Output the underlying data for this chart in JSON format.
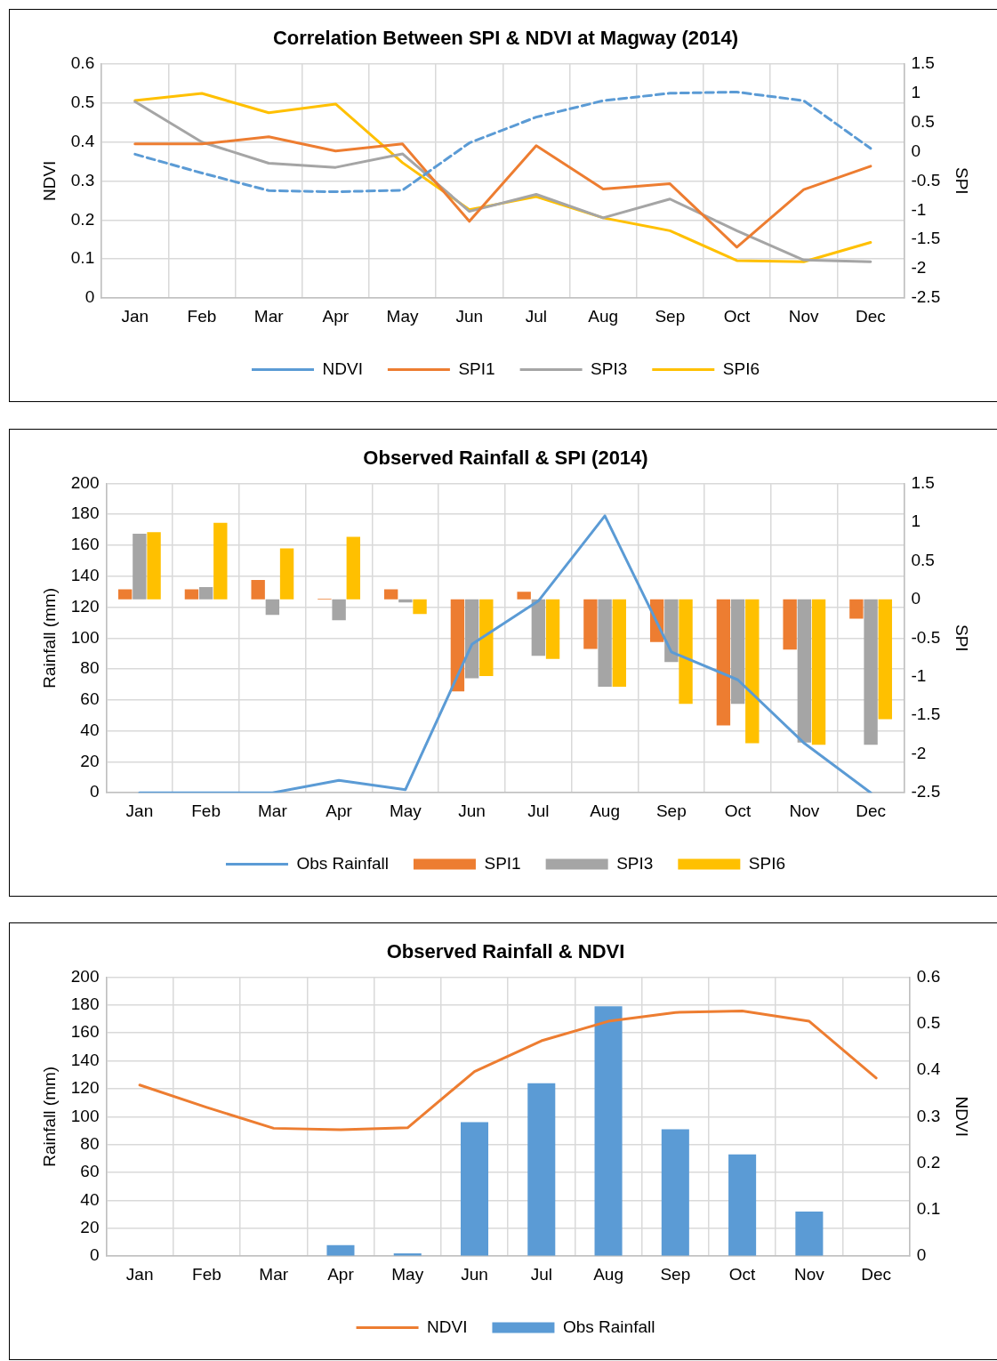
{
  "chart_data": [
    {
      "type": "line",
      "title": "Correlation Between SPI & NDVI at Magway (2014)",
      "ylabel": "NDVI",
      "y2label": "SPI",
      "categories": [
        "Jan",
        "Feb",
        "Mar",
        "Apr",
        "May",
        "Jun",
        "Jul",
        "Aug",
        "Sep",
        "Oct",
        "Nov",
        "Dec"
      ],
      "series": [
        {
          "name": "NDVI",
          "color": "#5b9bd5",
          "line_style": "dashed",
          "values": [
            0.368,
            0.32,
            0.275,
            0.272,
            0.276,
            0.397,
            0.463,
            0.505,
            0.524,
            0.527,
            0.505,
            0.383
          ]
        },
        {
          "name": "SPI1",
          "color": "#ed7d31",
          "axis": "y2",
          "values": [
            0.13,
            0.13,
            0.25,
            0.01,
            0.13,
            -1.19,
            0.1,
            -0.64,
            -0.55,
            -1.63,
            -0.65,
            -0.25
          ]
        },
        {
          "name": "SPI3",
          "color": "#a5a5a5",
          "axis": "y2",
          "values": [
            0.85,
            0.16,
            -0.2,
            -0.27,
            -0.04,
            -1.02,
            -0.73,
            -1.13,
            -0.81,
            -1.35,
            -1.85,
            -1.88
          ]
        },
        {
          "name": "SPI6",
          "color": "#ffc000",
          "axis": "y2",
          "values": [
            0.87,
            0.99,
            0.66,
            0.81,
            -0.19,
            -0.99,
            -0.77,
            -1.13,
            -1.35,
            -1.86,
            -1.88,
            -1.55
          ]
        }
      ],
      "ylim": [
        0,
        0.6
      ],
      "yticks": [
        0,
        0.1,
        0.2,
        0.3,
        0.4,
        0.5,
        0.6
      ],
      "y2lim": [
        -2.5,
        1.5
      ],
      "y2ticks": [
        -2.5,
        -2,
        -1.5,
        -1,
        -0.5,
        0,
        0.5,
        1,
        1.5
      ],
      "grid": true,
      "legend": "bottom"
    },
    {
      "type": "bar",
      "title": "Observed Rainfall & SPI (2014)",
      "ylabel": "Rainfall (mm)",
      "y2label": "SPI",
      "categories": [
        "Jan",
        "Feb",
        "Mar",
        "Apr",
        "May",
        "Jun",
        "Jul",
        "Aug",
        "Sep",
        "Oct",
        "Nov",
        "Dec"
      ],
      "series": [
        {
          "name": "SPI1",
          "color": "#ed7d31",
          "axis": "y2",
          "values": [
            0.13,
            0.13,
            0.25,
            0.01,
            0.13,
            -1.19,
            0.1,
            -0.64,
            -0.55,
            -1.63,
            -0.65,
            -0.25
          ]
        },
        {
          "name": "SPI3",
          "color": "#a5a5a5",
          "axis": "y2",
          "values": [
            0.85,
            0.16,
            -0.2,
            -0.27,
            -0.04,
            -1.02,
            -0.73,
            -1.13,
            -0.81,
            -1.35,
            -1.85,
            -1.88
          ]
        },
        {
          "name": "SPI6",
          "color": "#ffc000",
          "axis": "y2",
          "values": [
            0.87,
            0.99,
            0.66,
            0.81,
            -0.19,
            -0.99,
            -0.77,
            -1.13,
            -1.35,
            -1.86,
            -1.88,
            -1.55
          ]
        },
        {
          "name": "Obs Rainfall",
          "type": "line",
          "color": "#5b9bd5",
          "values": [
            0,
            0,
            0,
            8,
            2,
            96,
            124,
            179,
            91,
            73,
            32,
            0
          ]
        }
      ],
      "ylim": [
        0,
        200
      ],
      "yticks": [
        0,
        20,
        40,
        60,
        80,
        100,
        120,
        140,
        160,
        180,
        200
      ],
      "y2lim": [
        -2.5,
        1.5
      ],
      "y2ticks": [
        -2.5,
        -2,
        -1.5,
        -1,
        -0.5,
        0,
        0.5,
        1,
        1.5
      ],
      "grid": true,
      "legend": "bottom"
    },
    {
      "type": "bar",
      "title": "Observed Rainfall & NDVI",
      "ylabel": "Rainfall (mm)",
      "y2label": "NDVI",
      "categories": [
        "Jan",
        "Feb",
        "Mar",
        "Apr",
        "May",
        "Jun",
        "Jul",
        "Aug",
        "Sep",
        "Oct",
        "Nov",
        "Dec"
      ],
      "series": [
        {
          "name": "Obs Rainfall",
          "color": "#5b9bd5",
          "values": [
            0,
            0,
            0,
            8,
            2,
            96,
            124,
            179,
            91,
            73,
            32,
            0
          ]
        },
        {
          "name": "NDVI",
          "type": "line",
          "color": "#ed7d31",
          "axis": "y2",
          "values": [
            0.368,
            0.32,
            0.275,
            0.272,
            0.276,
            0.397,
            0.463,
            0.505,
            0.524,
            0.527,
            0.505,
            0.383
          ]
        }
      ],
      "ylim": [
        0,
        200
      ],
      "yticks": [
        0,
        20,
        40,
        60,
        80,
        100,
        120,
        140,
        160,
        180,
        200
      ],
      "y2lim": [
        0,
        0.6
      ],
      "y2ticks": [
        0,
        0.1,
        0.2,
        0.3,
        0.4,
        0.5,
        0.6
      ],
      "grid": true,
      "legend": "bottom"
    }
  ]
}
